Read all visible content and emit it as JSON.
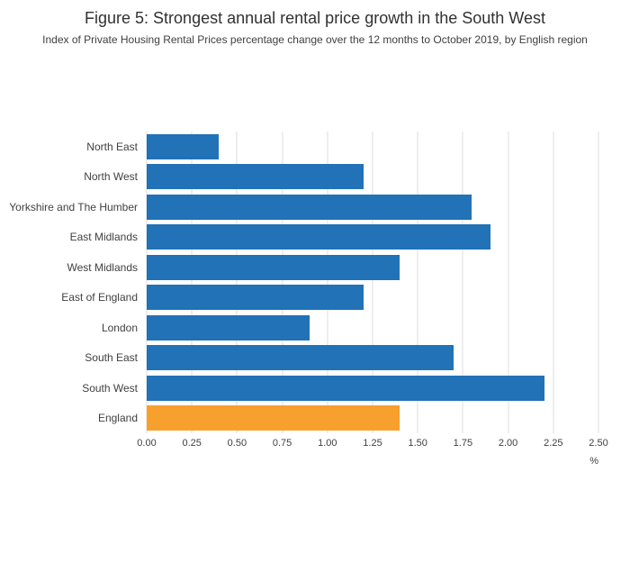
{
  "header": {
    "title": "Figure 5: Strongest annual rental price growth in the South West",
    "subtitle": "Index of Private Housing Rental Prices percentage change over the 12 months to October 2019, by English region"
  },
  "chart_data": {
    "type": "bar",
    "orientation": "horizontal",
    "categories": [
      "North East",
      "North West",
      "Yorkshire and The Humber",
      "East Midlands",
      "West Midlands",
      "East of England",
      "London",
      "South East",
      "South West",
      "England"
    ],
    "values": [
      0.4,
      1.2,
      1.8,
      1.9,
      1.4,
      1.2,
      0.9,
      1.7,
      2.2,
      1.4
    ],
    "highlight_category": "England",
    "colors": {
      "bar_default": "#2172b6",
      "bar_highlight": "#f8a02e",
      "gridline": "#dcdcdc"
    },
    "xlim": [
      0,
      2.5
    ],
    "x_ticks": [
      "0.00",
      "0.25",
      "0.50",
      "0.75",
      "1.00",
      "1.25",
      "1.50",
      "1.75",
      "2.00",
      "2.25",
      "2.50"
    ],
    "x_unit": "%",
    "grid": true,
    "legend": "none",
    "title": "Figure 5: Strongest annual rental price growth in the South West",
    "xlabel": "%",
    "ylabel": ""
  }
}
